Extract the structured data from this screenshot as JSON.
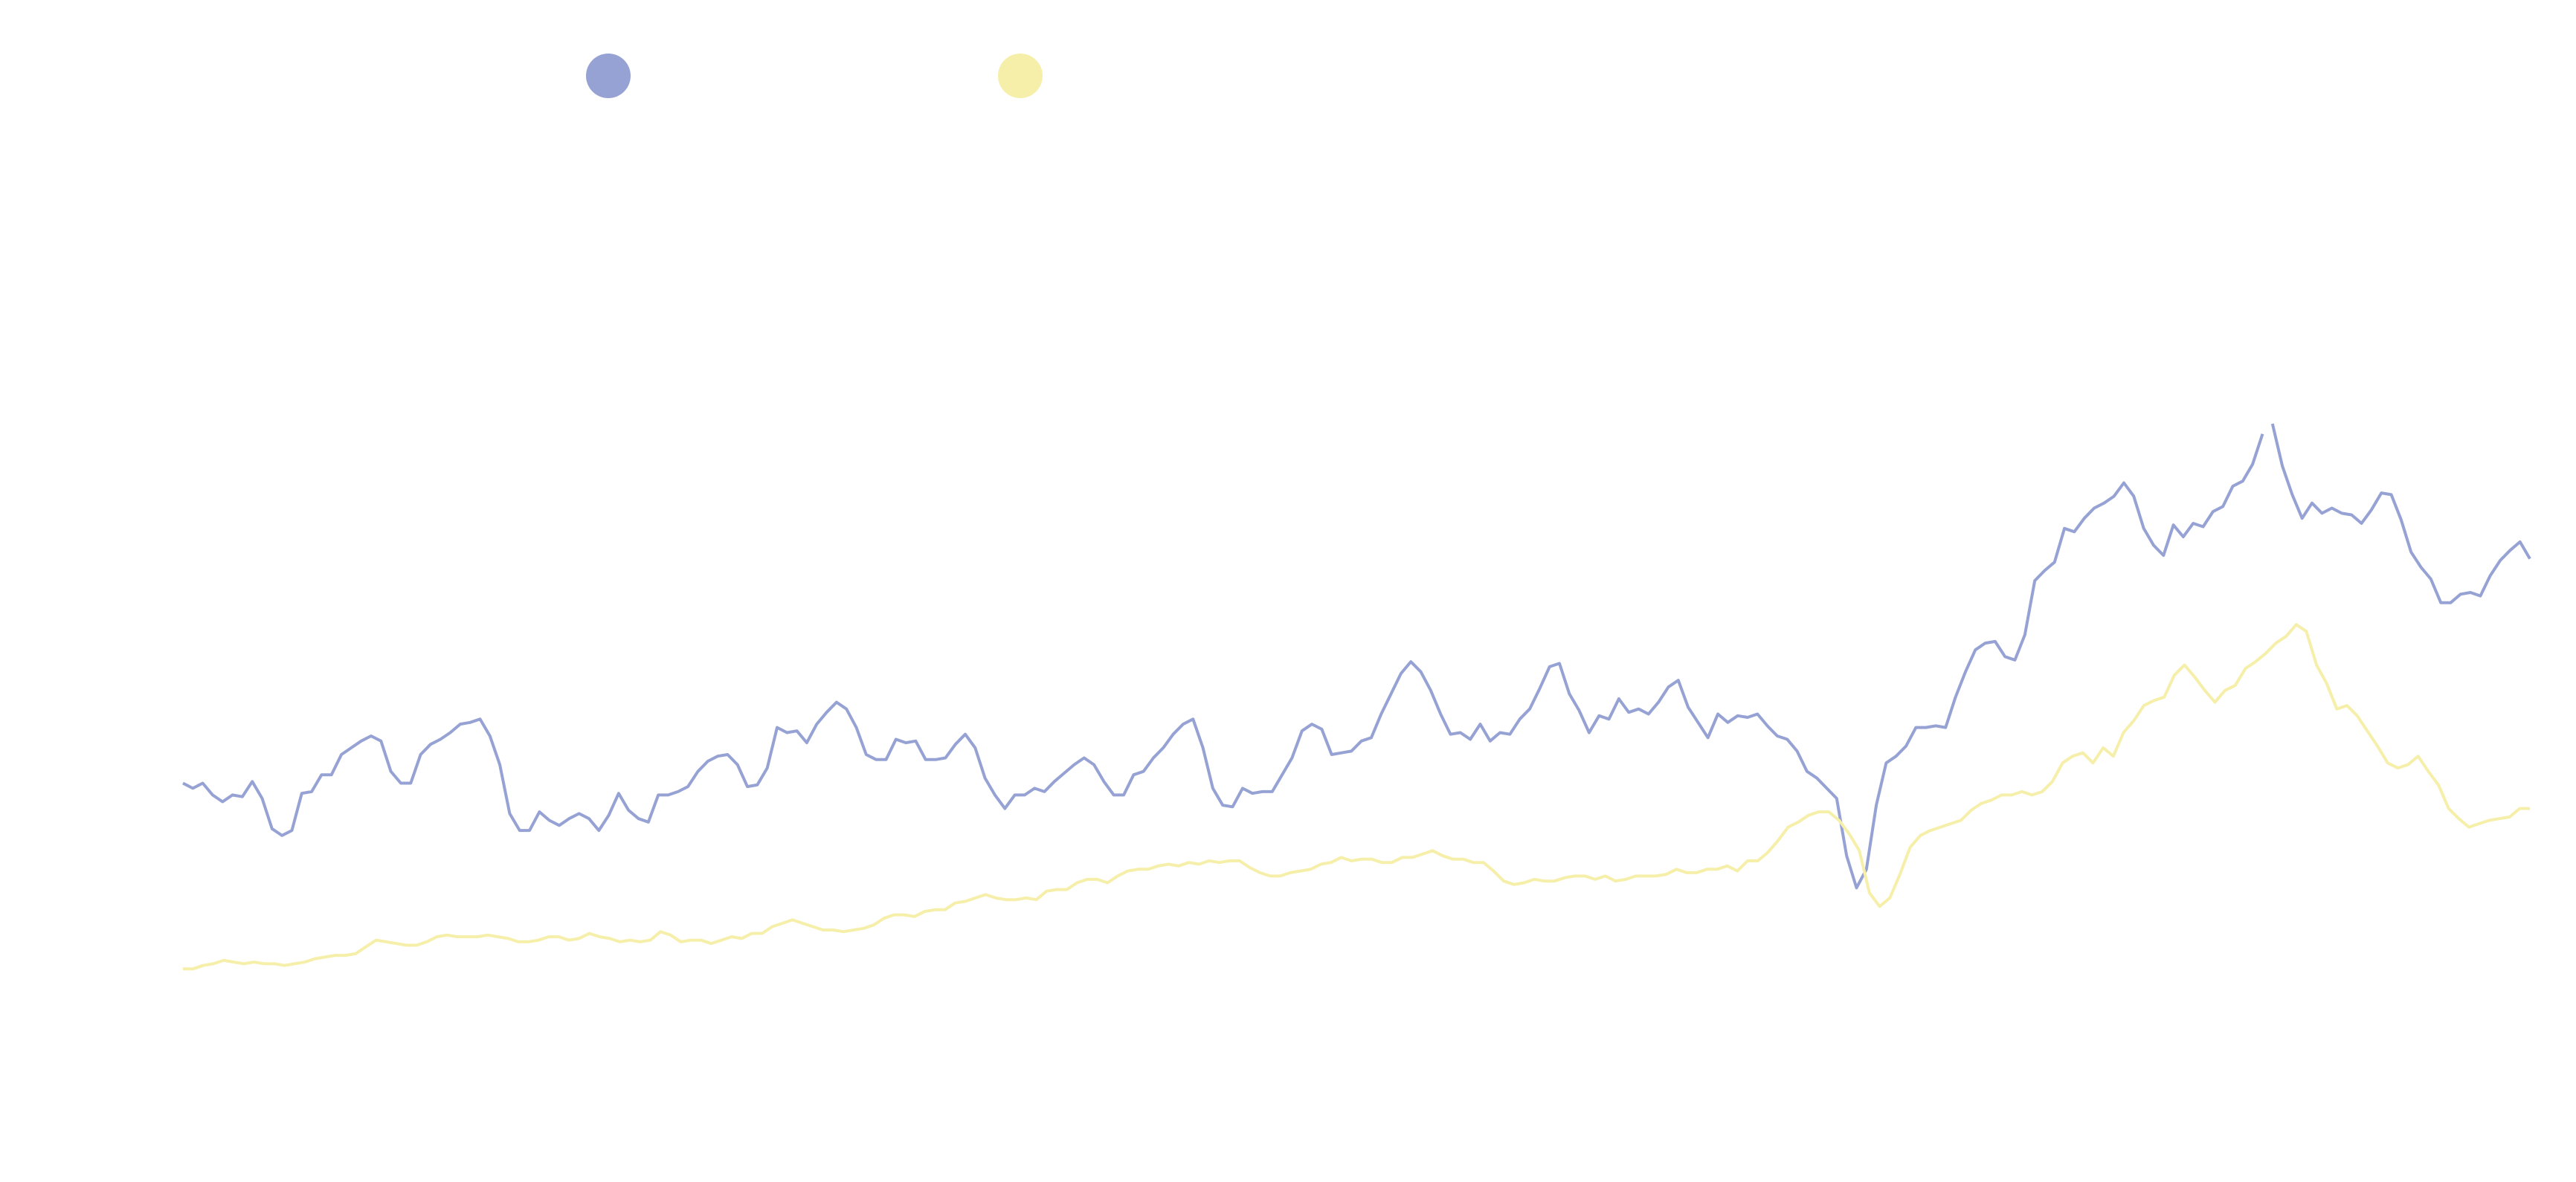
{
  "chart_data": {
    "type": "line",
    "title": "",
    "xlabel": "",
    "ylabel": "",
    "grid": false,
    "legend": "top-left",
    "ylim": [
      0,
      700
    ],
    "series": [
      {
        "color": "#96A2D4",
        "values": [
          235,
          232,
          235,
          228,
          224,
          228,
          227,
          236,
          226,
          208,
          204,
          207,
          229,
          230,
          240,
          240,
          252,
          256,
          260,
          263,
          260,
          242,
          235,
          235,
          252,
          258,
          261,
          265,
          270,
          271,
          273,
          263,
          246,
          217,
          207,
          207,
          218,
          213,
          210,
          214,
          217,
          214,
          207,
          216,
          229,
          219,
          214,
          212,
          228,
          228,
          230,
          233,
          242,
          248,
          251,
          252,
          246,
          233,
          234,
          244,
          268,
          265,
          266,
          259,
          270,
          277,
          283,
          279,
          268,
          252,
          249,
          249,
          261,
          259,
          260,
          249,
          249,
          250,
          258,
          264,
          256,
          238,
          228,
          220,
          228,
          228,
          232,
          230,
          236,
          241,
          246,
          250,
          246,
          236,
          228,
          228,
          240,
          242,
          250,
          256,
          264,
          270,
          273,
          256,
          232,
          222,
          221,
          232,
          229,
          230,
          230,
          240,
          250,
          266,
          270,
          267,
          252,
          253,
          254,
          260,
          262,
          276,
          288,
          300,
          307,
          301,
          290,
          276,
          264,
          265,
          261,
          270,
          260,
          265,
          264,
          273,
          279,
          291,
          304,
          306,
          288,
          278,
          265,
          275,
          273,
          285,
          277,
          279,
          276,
          283,
          292,
          296,
          280,
          271,
          262,
          276,
          271,
          275,
          274,
          276,
          269,
          263,
          261,
          254,
          242,
          238,
          232,
          226,
          192,
          173,
          184,
          222,
          247,
          251,
          257,
          268,
          268,
          269,
          268,
          286,
          301,
          314,
          318,
          319,
          310,
          308,
          323,
          355,
          361,
          366,
          386,
          384,
          392,
          398,
          401,
          405,
          413,
          405,
          386,
          376,
          370,
          388,
          381,
          389,
          387,
          396,
          399,
          411,
          414,
          424,
          442,
          448,
          423,
          406,
          392,
          401,
          395,
          398,
          395,
          394,
          389,
          397,
          407,
          406,
          391,
          372,
          363,
          356,
          342,
          342,
          347,
          348,
          346,
          358,
          367,
          373,
          378,
          368
        ],
        "breaks": [
          211
        ]
      },
      {
        "color": "#F6EFAA",
        "values": [
          125,
          125,
          127,
          128,
          130,
          129,
          128,
          129,
          128,
          128,
          127,
          128,
          129,
          131,
          132,
          133,
          133,
          134,
          138,
          142,
          141,
          140,
          139,
          139,
          141,
          144,
          145,
          144,
          144,
          144,
          145,
          144,
          143,
          141,
          141,
          142,
          144,
          144,
          142,
          143,
          146,
          144,
          143,
          141,
          142,
          141,
          142,
          147,
          145,
          141,
          142,
          142,
          140,
          142,
          144,
          143,
          146,
          146,
          150,
          152,
          154,
          152,
          150,
          148,
          148,
          147,
          148,
          149,
          151,
          155,
          157,
          157,
          156,
          159,
          160,
          160,
          164,
          165,
          167,
          169,
          167,
          166,
          166,
          167,
          166,
          171,
          172,
          172,
          176,
          178,
          178,
          176,
          180,
          183,
          184,
          184,
          186,
          187,
          186,
          188,
          187,
          189,
          188,
          189,
          189,
          185,
          182,
          180,
          180,
          182,
          183,
          184,
          187,
          188,
          191,
          189,
          190,
          190,
          188,
          188,
          191,
          191,
          193,
          195,
          192,
          190,
          190,
          188,
          188,
          183,
          177,
          175,
          176,
          178,
          177,
          177,
          179,
          180,
          180,
          178,
          180,
          177,
          178,
          180,
          180,
          180,
          181,
          184,
          182,
          182,
          184,
          184,
          186,
          183,
          189,
          189,
          194,
          201,
          209,
          212,
          216,
          218,
          218,
          213,
          205,
          195,
          170,
          162,
          167,
          181,
          197,
          204,
          207,
          209,
          211,
          213,
          219,
          223,
          225,
          228,
          228,
          230,
          228,
          230,
          236,
          247,
          251,
          253,
          247,
          256,
          251,
          265,
          272,
          281,
          284,
          286,
          299,
          305,
          298,
          290,
          283,
          290,
          293,
          303,
          307,
          312,
          318,
          322,
          329,
          325,
          305,
          294,
          279,
          281,
          275,
          266,
          257,
          247,
          244,
          246,
          251,
          242,
          234,
          220,
          214,
          209,
          211,
          213,
          214,
          215,
          220,
          220
        ],
        "breaks": []
      }
    ]
  }
}
